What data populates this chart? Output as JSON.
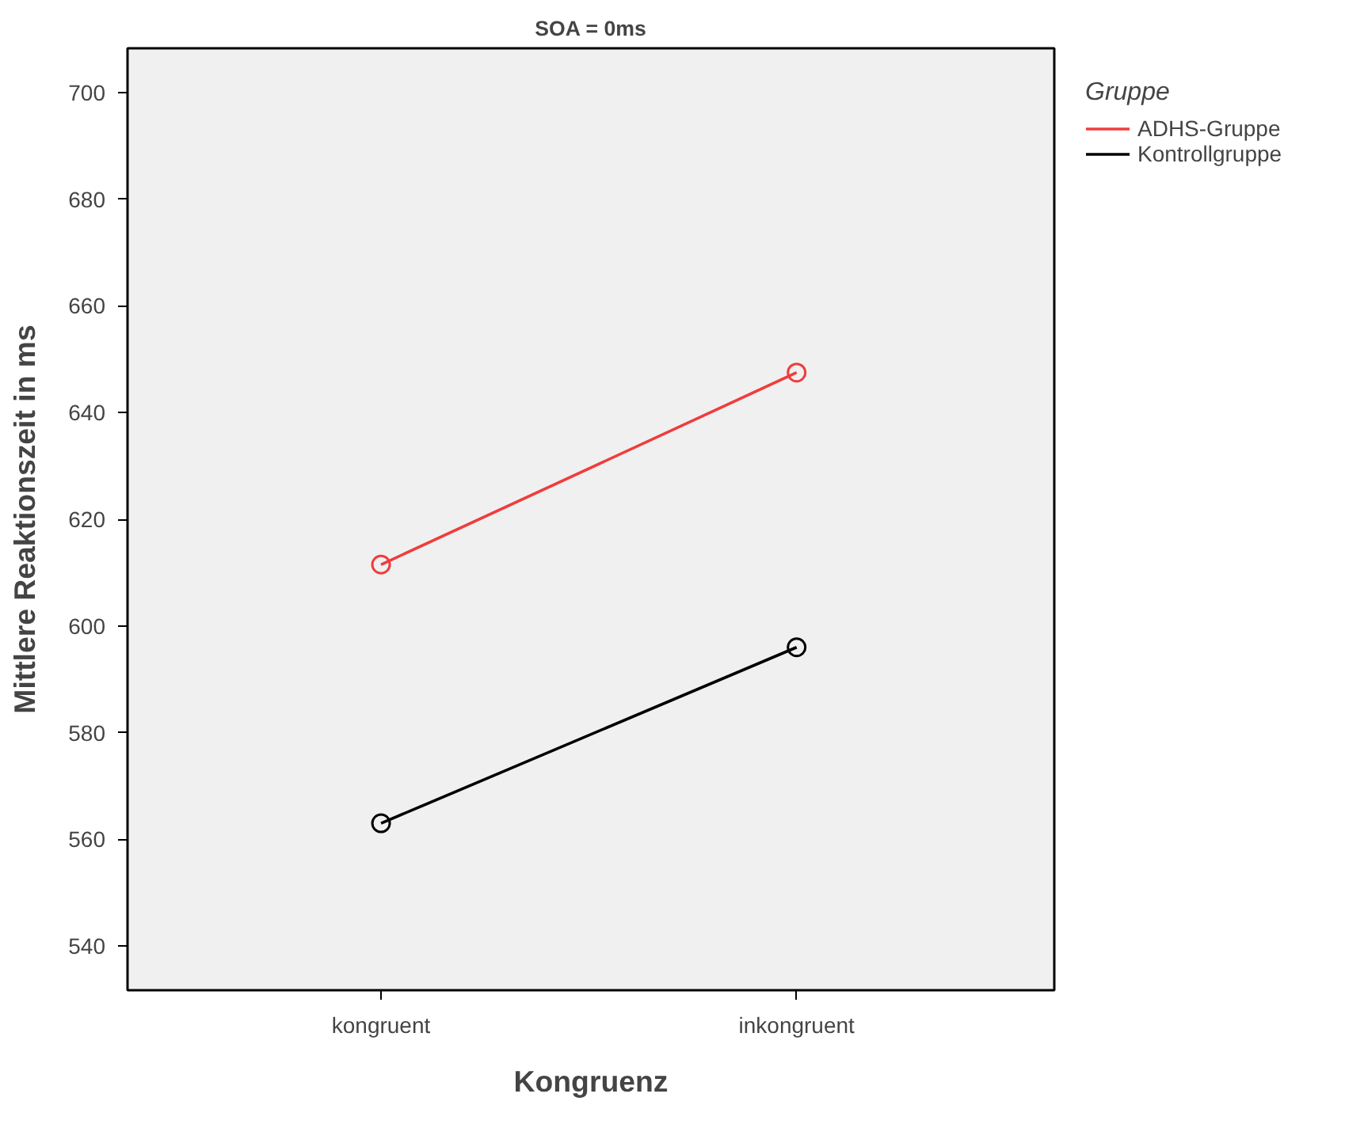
{
  "chart_data": {
    "type": "line",
    "title": "SOA = 0ms",
    "xlabel": "Kongruenz",
    "ylabel": "Mittlere Reaktionszeit in ms",
    "legend_title": "Gruppe",
    "categories": [
      "kongruent",
      "inkongruent"
    ],
    "series": [
      {
        "name": "ADHS-Gruppe",
        "color": "#f03c3c",
        "values": [
          611.5,
          647.5
        ]
      },
      {
        "name": "Kontrollgruppe",
        "color": "#000000",
        "values": [
          563,
          596
        ]
      }
    ],
    "ylim": [
      531.7,
      708.3
    ],
    "yticks": [
      540,
      560,
      580,
      600,
      620,
      640,
      660,
      680,
      700
    ],
    "grid": false,
    "legend": "top right",
    "marker": "circle",
    "line_style": "solid"
  }
}
